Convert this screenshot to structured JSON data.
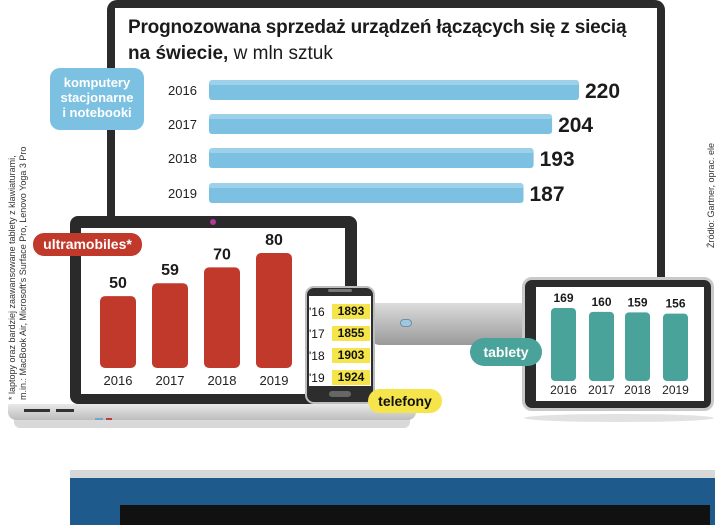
{
  "title_line1": "Prognozowana sprzedaż urządzeń łączących się z siecią",
  "title_line2_bold": "na świecie,",
  "title_line2_rest": " w mln sztuk",
  "source": "Źródło: Gartner, oprac. ele",
  "footnote_line1": "* laptopy oraz bardziej zaawansowane tablety z klawiaturami,",
  "footnote_line2": "m.in.: MacBook Air, Microsoft's Surface Pro, Lenovo Yoga 3 Pro",
  "colors": {
    "pc": "#7cc1e2",
    "ultramobiles": "#c0392b",
    "phones": "#f5e54a",
    "tablets": "#4aa39a"
  },
  "chart_data": [
    {
      "type": "bar",
      "name": "komputery stacjonarne i notebooki",
      "label_lines": [
        "komputery",
        "stacjonarne",
        "i notebooki"
      ],
      "orientation": "horizontal",
      "categories": [
        "2016",
        "2017",
        "2018",
        "2019"
      ],
      "values": [
        220,
        204,
        193,
        187
      ]
    },
    {
      "type": "bar",
      "name": "ultramobiles*",
      "orientation": "vertical",
      "categories": [
        "2016",
        "2017",
        "2018",
        "2019"
      ],
      "values": [
        50,
        59,
        70,
        80
      ]
    },
    {
      "type": "table",
      "name": "telefony",
      "categories": [
        "'16",
        "'17",
        "'18",
        "'19"
      ],
      "values": [
        1893,
        1855,
        1903,
        1924
      ]
    },
    {
      "type": "bar",
      "name": "tablety",
      "orientation": "vertical",
      "categories": [
        "2016",
        "2017",
        "2018",
        "2019"
      ],
      "values": [
        169,
        160,
        159,
        156
      ]
    }
  ]
}
